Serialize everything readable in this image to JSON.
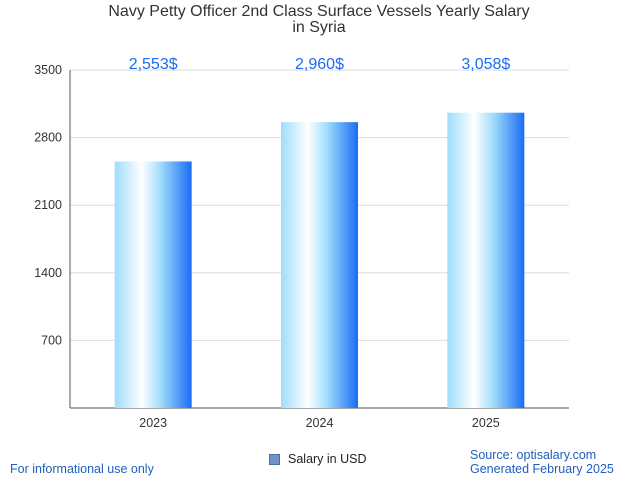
{
  "chart_data": {
    "type": "bar",
    "title_line1": "Navy Petty Officer 2nd Class Surface Vessels Yearly Salary",
    "title_line2": "in Syria",
    "categories": [
      "2023",
      "2024",
      "2025"
    ],
    "series": [
      {
        "name": "Salary in USD",
        "values": [
          2553,
          2960,
          3058
        ]
      }
    ],
    "data_labels": [
      "2,553$",
      "2,960$",
      "3,058$"
    ],
    "y_ticks": [
      700,
      1400,
      2100,
      2800,
      3500
    ],
    "ylim": [
      0,
      3500
    ],
    "grid": true,
    "legend_position": "bottom"
  },
  "colors": {
    "bar_light": "#ffffff",
    "bar_mid": "#9fdcfb",
    "bar_dark": "#1a6cf5",
    "data_label": "#1a6cf5",
    "gridline": "#dddddd",
    "axis": "#555555"
  },
  "footer": {
    "left": "For informational use only",
    "source": "Source: optisalary.com",
    "generated": "Generated February 2025"
  },
  "legend": {
    "label": "Salary in USD"
  }
}
